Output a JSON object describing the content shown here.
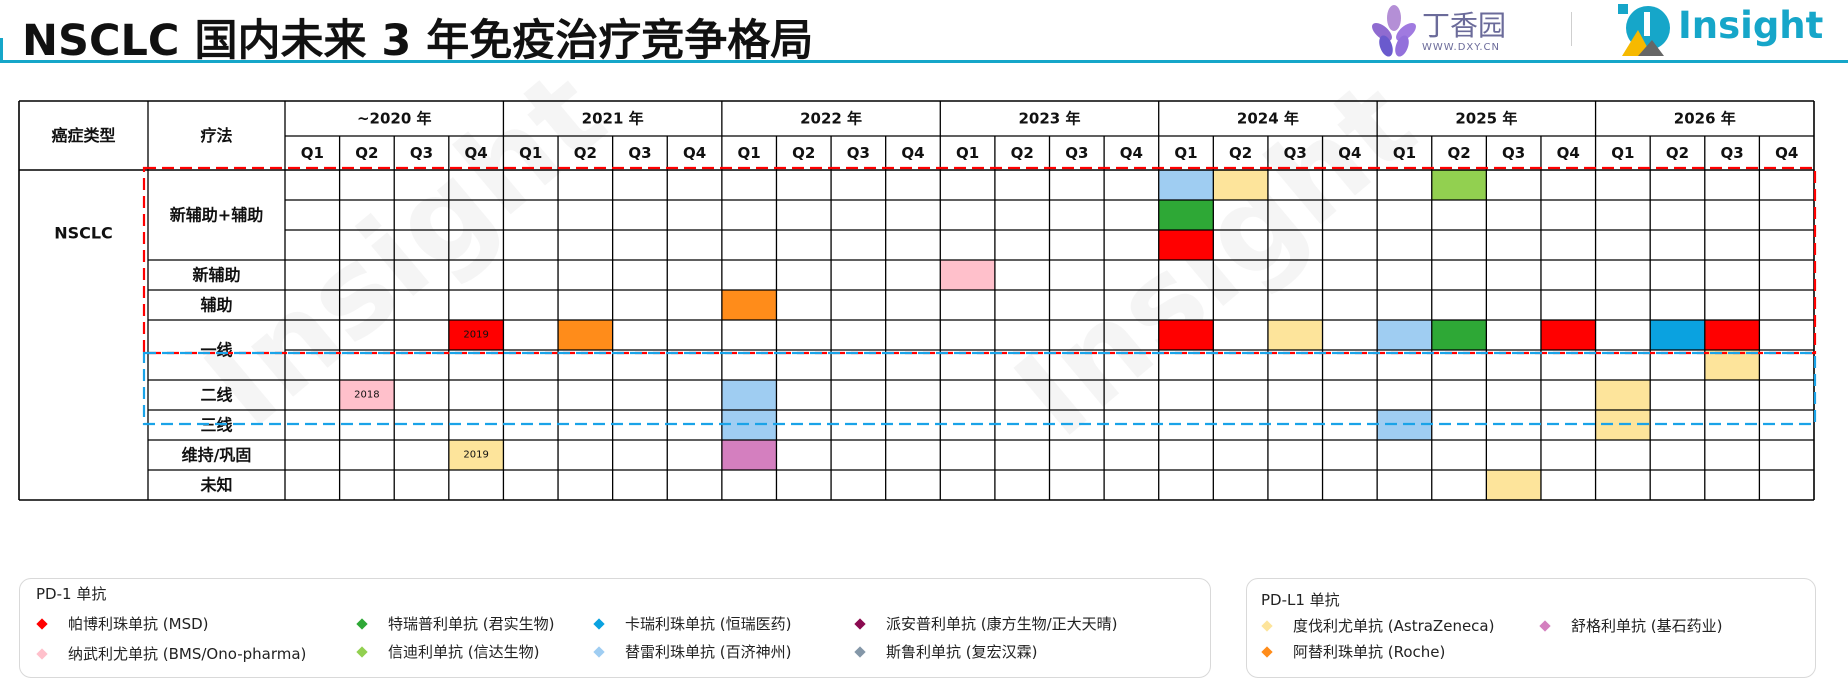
{
  "header": {
    "title": "NSCLC 国内未来 3 年免疫治疗竞争格局",
    "brand_dxy": "丁香园",
    "brand_dxy_sub": "WWW.DXY.CN",
    "brand_insight": "Insight"
  },
  "table": {
    "col_cancer": "癌症类型",
    "col_therapy": "疗法",
    "years": [
      "~2020 年",
      "2021 年",
      "2022 年",
      "2023 年",
      "2024 年",
      "2025 年",
      "2026 年"
    ],
    "quarters": [
      "Q1",
      "Q2",
      "Q3",
      "Q4"
    ],
    "cancer_type": "NSCLC",
    "therapy_groups": [
      {
        "label": "新辅助+辅助",
        "rows": 3
      },
      {
        "label": "新辅助",
        "rows": 1
      },
      {
        "label": "辅助",
        "rows": 1
      },
      {
        "label": "一线",
        "rows": 2
      },
      {
        "label": "二线",
        "rows": 1
      },
      {
        "label": "三线",
        "rows": 1
      },
      {
        "label": "维持/巩固",
        "rows": 1
      },
      {
        "label": "未知",
        "rows": 1
      }
    ],
    "cells": [
      {
        "row": 0,
        "col": 16,
        "color": "#9fcdf2",
        "text": ""
      },
      {
        "row": 0,
        "col": 17,
        "color": "#fde49b",
        "text": ""
      },
      {
        "row": 0,
        "col": 21,
        "color": "#92d050",
        "text": ""
      },
      {
        "row": 1,
        "col": 16,
        "color": "#2ea836",
        "text": ""
      },
      {
        "row": 2,
        "col": 16,
        "color": "#ff0000",
        "text": ""
      },
      {
        "row": 3,
        "col": 12,
        "color": "#ffc0cb",
        "text": ""
      },
      {
        "row": 4,
        "col": 8,
        "color": "#ff8c1a",
        "text": ""
      },
      {
        "row": 5,
        "col": 3,
        "color": "#ff0000",
        "text": "2019"
      },
      {
        "row": 5,
        "col": 5,
        "color": "#ff8c1a",
        "text": ""
      },
      {
        "row": 5,
        "col": 16,
        "color": "#ff0000",
        "text": ""
      },
      {
        "row": 5,
        "col": 18,
        "color": "#fde49b",
        "text": ""
      },
      {
        "row": 5,
        "col": 20,
        "color": "#9fcdf2",
        "text": ""
      },
      {
        "row": 5,
        "col": 21,
        "color": "#2ea836",
        "text": ""
      },
      {
        "row": 5,
        "col": 23,
        "color": "#ff0000",
        "text": ""
      },
      {
        "row": 5,
        "col": 25,
        "color": "#0aa2e0",
        "text": ""
      },
      {
        "row": 5,
        "col": 26,
        "color": "#ff0000",
        "text": ""
      },
      {
        "row": 6,
        "col": 26,
        "color": "#fde49b",
        "text": ""
      },
      {
        "row": 7,
        "col": 1,
        "color": "#ffc0cb",
        "text": "2018"
      },
      {
        "row": 7,
        "col": 8,
        "color": "#9fcdf2",
        "text": ""
      },
      {
        "row": 7,
        "col": 24,
        "color": "#fde49b",
        "text": ""
      },
      {
        "row": 8,
        "col": 8,
        "color": "#9fcdf2",
        "text": ""
      },
      {
        "row": 8,
        "col": 20,
        "color": "#9fcdf2",
        "text": ""
      },
      {
        "row": 8,
        "col": 24,
        "color": "#fde49b",
        "text": ""
      },
      {
        "row": 9,
        "col": 3,
        "color": "#fde49b",
        "text": "2019"
      },
      {
        "row": 9,
        "col": 8,
        "color": "#d47fbf",
        "text": ""
      },
      {
        "row": 10,
        "col": 22,
        "color": "#fde49b",
        "text": ""
      }
    ]
  },
  "legend_pd1": {
    "title": "PD-1 单抗",
    "items": [
      {
        "label": "帕博利珠单抗 (MSD)",
        "color": "#ff0000"
      },
      {
        "label": "特瑞普利单抗 (君实生物)",
        "color": "#2ea836"
      },
      {
        "label": "卡瑞利珠单抗 (恒瑞医药)",
        "color": "#0aa2e0"
      },
      {
        "label": "派安普利单抗 (康方生物/正大天晴)",
        "color": "#8b0a50"
      },
      {
        "label": "纳武利尤单抗 (BMS/Ono-pharma)",
        "color": "#ffc0cb"
      },
      {
        "label": "信迪利单抗 (信达生物)",
        "color": "#92d050"
      },
      {
        "label": "替雷利珠单抗 (百济神州)",
        "color": "#9fcdf2"
      },
      {
        "label": "斯鲁利单抗 (复宏汉霖)",
        "color": "#8497a8"
      }
    ]
  },
  "legend_pdl1": {
    "title": "PD-L1 单抗",
    "items": [
      {
        "label": "度伐利尤单抗 (AstraZeneca)",
        "color": "#fde49b"
      },
      {
        "label": "舒格利单抗 (基石药业)",
        "color": "#d47fbf"
      },
      {
        "label": "阿替利珠单抗 (Roche)",
        "color": "#ff8c1a"
      }
    ]
  },
  "colors": {
    "accent": "#16a6c9",
    "red_dash": "#ff0000",
    "blue_dash": "#1aa3e8"
  }
}
